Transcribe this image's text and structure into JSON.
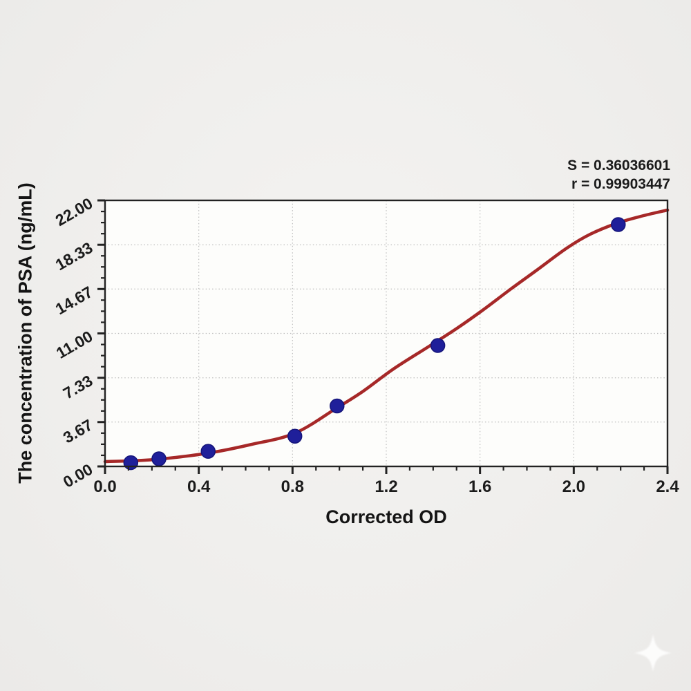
{
  "page": {
    "background_color": "#efeeec",
    "plot_background_color": "#fdfdfb"
  },
  "stats": {
    "s_label": "S = 0.36036601",
    "r_label": "r = 0.99903447"
  },
  "chart_data": {
    "type": "scatter",
    "title": "",
    "xlabel": "Corrected OD",
    "ylabel": "The concentration of PSA (ng/mL)",
    "xlim": [
      0,
      2.4
    ],
    "ylim": [
      0,
      22
    ],
    "grid": "dotted major gridlines both axes",
    "legend": "none",
    "x_ticks": {
      "values": [
        0,
        0.4,
        0.8,
        1.2,
        1.6,
        2.0,
        2.4
      ],
      "labels": [
        "0.0",
        "0.4",
        "0.8",
        "1.2",
        "1.6",
        "2.0",
        "2.4"
      ],
      "minor_step": 0.1
    },
    "y_ticks": {
      "values": [
        0,
        3.67,
        7.33,
        11.0,
        14.67,
        18.33,
        22.0
      ],
      "labels": [
        "0.00",
        "3.67",
        "7.33",
        "11.00",
        "14.67",
        "18.33",
        "22.00"
      ],
      "minor_divisions": 4,
      "label_rotation_deg": -30
    },
    "series": [
      {
        "name": "standard points",
        "marker": "circle",
        "x": [
          0.11,
          0.23,
          0.44,
          0.81,
          0.99,
          1.42,
          2.19
        ],
        "y": [
          0.31,
          0.63,
          1.25,
          2.5,
          5.0,
          10.0,
          20.0
        ]
      },
      {
        "name": "4PL fit curve",
        "marker": "none",
        "x": [
          0.0,
          0.12,
          0.24,
          0.44,
          0.62,
          0.81,
          0.99,
          1.1,
          1.23,
          1.38,
          1.5,
          1.61,
          1.73,
          1.84,
          1.97,
          2.07,
          2.19,
          2.3,
          2.4
        ],
        "y": [
          0.4,
          0.47,
          0.62,
          1.1,
          1.8,
          2.75,
          4.85,
          6.2,
          8.05,
          9.9,
          11.4,
          12.9,
          14.65,
          16.2,
          18.05,
          19.2,
          20.15,
          20.75,
          21.2
        ]
      }
    ],
    "colors": {
      "curve": "#a62828",
      "point_fill": "#1f1f9a",
      "point_stroke": "#14147a",
      "axis": "#222222",
      "grid": "#bdbdbd",
      "tick_label": "#1b1b1b"
    }
  }
}
